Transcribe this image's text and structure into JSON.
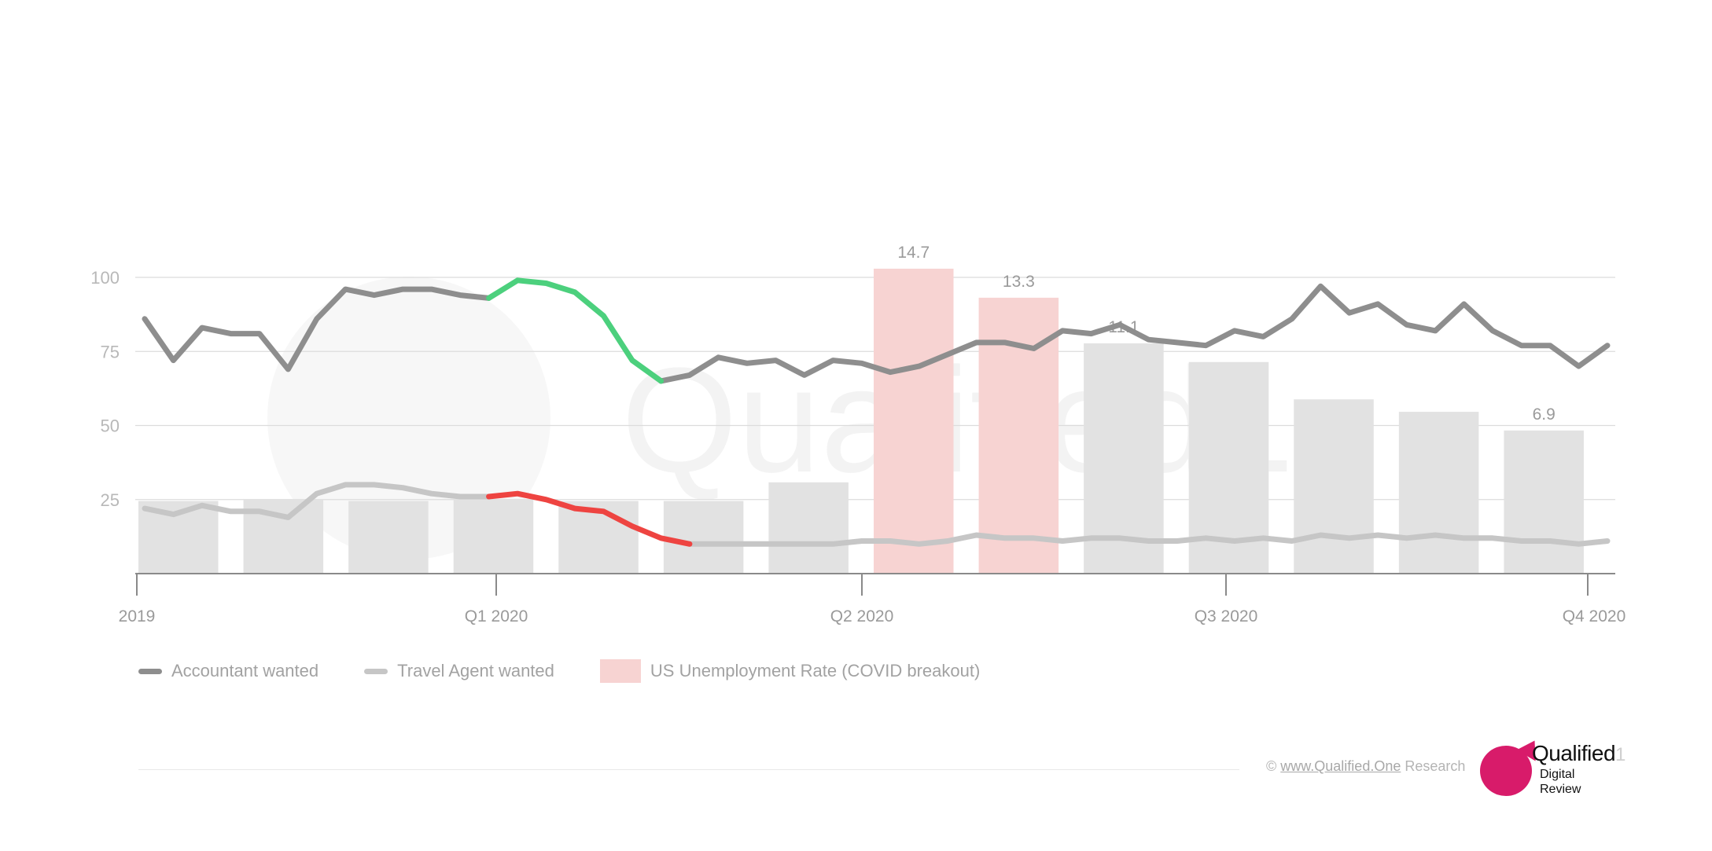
{
  "chart_data": {
    "type": "bar+line",
    "x_ticks": [
      "2019",
      "Q1 2020",
      "Q2 2020",
      "Q3 2020",
      "Q4 2020"
    ],
    "y_ticks": [
      100,
      75,
      50,
      25
    ],
    "ylim": [
      0,
      100
    ],
    "grid": true,
    "watermark": "Qualified1",
    "bars": {
      "name": "US Unemployment Rate (COVID breakout)",
      "values": [
        3.5,
        3.6,
        3.5,
        3.6,
        3.5,
        3.5,
        4.4,
        14.7,
        13.3,
        11.1,
        10.2,
        8.4,
        7.8,
        6.9
      ],
      "covid_values": [
        14.7,
        13.3
      ],
      "labels": [
        {
          "index": 7,
          "text": "14.7"
        },
        {
          "index": 8,
          "text": "13.3"
        },
        {
          "index": 9,
          "text": "11.1"
        },
        {
          "index": 13,
          "text": "6.9"
        }
      ],
      "color": "#e2e2e2",
      "covid_color": "#f7d3d2"
    },
    "series": [
      {
        "name": "Accountant wanted",
        "color": "#8e8e8e",
        "highlight_color": "#4cd07d",
        "values": [
          86,
          72,
          83,
          81,
          81,
          69,
          86,
          96,
          94,
          96,
          96,
          94,
          93,
          99,
          98,
          95,
          87,
          72,
          65,
          67,
          73,
          71,
          72,
          67,
          72,
          71,
          68,
          70,
          74,
          78,
          78,
          76,
          82,
          81,
          84,
          79,
          78,
          77,
          82,
          80,
          86,
          97,
          88,
          91,
          84,
          82,
          91,
          82,
          77,
          77,
          70,
          77
        ],
        "highlight_range": [
          12,
          18
        ]
      },
      {
        "name": "Travel Agent wanted",
        "color": "#c6c6c6",
        "highlight_color": "#ee4441",
        "values": [
          22,
          20,
          23,
          21,
          21,
          19,
          27,
          30,
          30,
          29,
          27,
          26,
          26,
          27,
          25,
          22,
          21,
          16,
          12,
          10,
          10,
          10,
          10,
          10,
          10,
          11,
          11,
          10,
          11,
          13,
          12,
          12,
          11,
          12,
          12,
          11,
          11,
          12,
          11,
          12,
          11,
          13,
          12,
          13,
          12,
          13,
          12,
          12,
          11,
          11,
          10,
          11
        ],
        "highlight_range": [
          12,
          19
        ]
      }
    ]
  },
  "legend": {
    "accountant": "Accountant wanted",
    "travel": "Travel Agent wanted",
    "unemployment": "US Unemployment Rate (COVID breakout)"
  },
  "footer": {
    "copyright": "©",
    "url": "www.Qualified.One",
    "research": "Research"
  },
  "logo": {
    "name": "Qualified",
    "number": "1",
    "line1": "Digital",
    "line2": "Review"
  }
}
